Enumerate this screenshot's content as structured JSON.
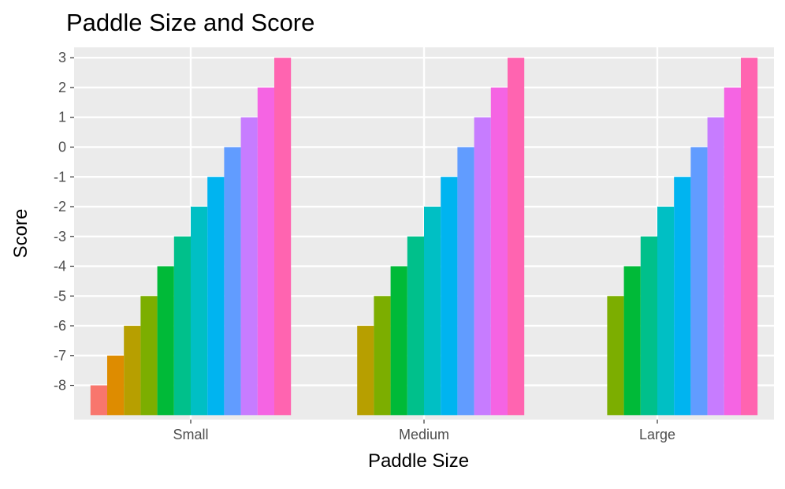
{
  "chart_data": {
    "type": "bar",
    "title": "Paddle Size and Score",
    "xlabel": "Paddle Size",
    "ylabel": "Score",
    "categories": [
      "Small",
      "Medium",
      "Large"
    ],
    "ylim": [
      -9.15,
      3.35
    ],
    "yticks": [
      -8,
      -7,
      -6,
      -5,
      -4,
      -3,
      -2,
      -1,
      0,
      1,
      2,
      3
    ],
    "bar_base": -9.0,
    "grid": true,
    "legend": "none",
    "levels": [
      -8,
      -7,
      -6,
      -5,
      -4,
      -3,
      -2,
      -1,
      0,
      1,
      2,
      3
    ],
    "level_colors": [
      "#F8766D",
      "#DE8C00",
      "#B79F00",
      "#7CAE00",
      "#00BA38",
      "#00C08B",
      "#00BFC4",
      "#00B4F0",
      "#619CFF",
      "#C77CFF",
      "#F564E3",
      "#FF64B0"
    ],
    "groups": [
      {
        "category": "Small",
        "values": [
          -8,
          -7,
          -6,
          -5,
          -4,
          -3,
          -2,
          -1,
          0,
          1,
          2,
          3
        ]
      },
      {
        "category": "Medium",
        "values": [
          -6,
          -5,
          -4,
          -3,
          -2,
          -1,
          0,
          1,
          2,
          3
        ]
      },
      {
        "category": "Large",
        "values": [
          -5,
          -4,
          -3,
          -2,
          -1,
          0,
          1,
          2,
          3
        ]
      }
    ]
  }
}
